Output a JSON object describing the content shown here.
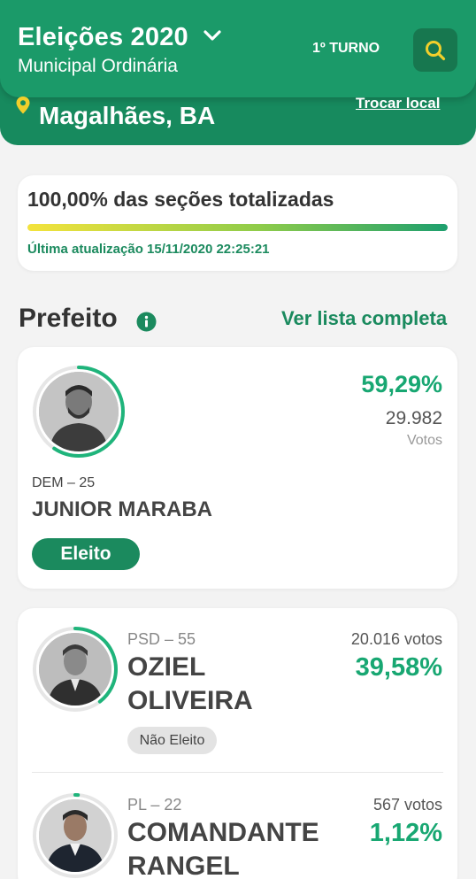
{
  "header": {
    "title": "Eleições 2020",
    "subtitle": "Municipal Ordinária",
    "round": "1º TURNO",
    "title_dropdown_icon": "chevron-down-icon",
    "search_icon": "search-icon"
  },
  "location": {
    "pin_icon": "map-pin-icon",
    "name": "Magalhães, BA",
    "change_label": "Trocar local"
  },
  "progress": {
    "title": "100,00% das seções totalizadas",
    "fraction": 1.0,
    "last_update": "Última atualização 15/11/2020 22:25:21"
  },
  "section": {
    "title": "Prefeito",
    "info_icon": "info-icon",
    "see_all_label": "Ver lista completa"
  },
  "candidates": [
    {
      "party": "DEM – 25",
      "name": "JUNIOR MARABA",
      "percent": "59,29%",
      "percent_value": 59.29,
      "votes": "29.982",
      "votes_unit": "Votos",
      "status": "Eleito"
    },
    {
      "party": "PSD – 55",
      "name_line1": "OZIEL",
      "name_line2": "OLIVEIRA",
      "percent": "39,58%",
      "percent_value": 39.58,
      "votes": "20.016 votos",
      "status": "Não Eleito"
    },
    {
      "party": "PL – 22",
      "name_line1": "COMANDANTE",
      "name_line2": "RANGEL",
      "percent": "1,12%",
      "percent_value": 1.12,
      "votes": "567 votos"
    }
  ],
  "colors": {
    "brand_green": "#1b9a69",
    "accent_green": "#18a772",
    "pin_yellow": "#f2cf2b"
  }
}
